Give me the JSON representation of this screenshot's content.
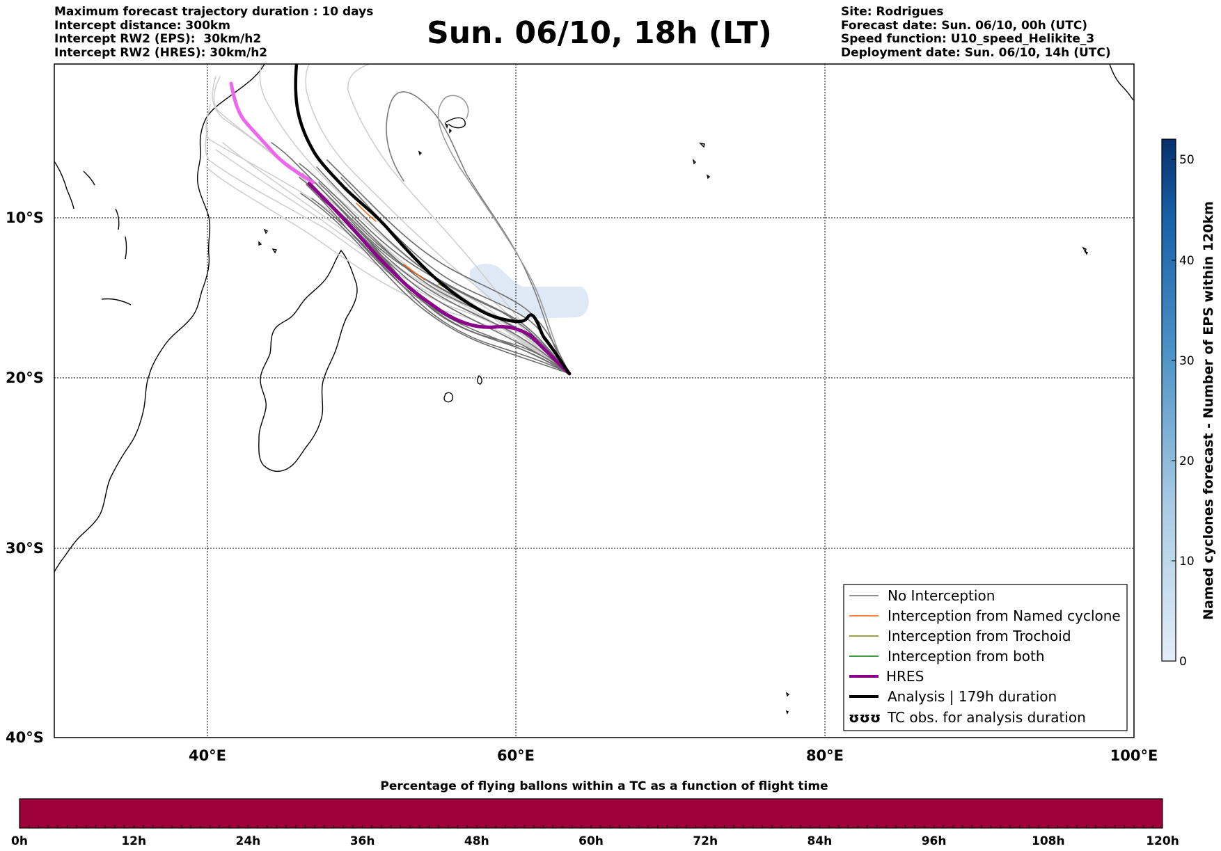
{
  "header": {
    "left_lines": [
      "Maximum forecast trajectory duration : 10 days",
      "Intercept distance: 300km",
      "Intercept RW2 (EPS):  30km/h2",
      "Intercept RW2 (HRES): 30km/h2"
    ],
    "title": "Sun. 06/10, 18h (LT)",
    "right_lines": [
      "Site: Rodrigues",
      "Forecast date: Sun. 06/10, 00h (UTC)",
      "Speed function: U10_speed_Helikite_3",
      "Deployment date: Sun. 06/10, 14h (UTC)"
    ]
  },
  "map": {
    "lat_labels": [
      "10°S",
      "20°S",
      "30°S",
      "40°S"
    ],
    "lon_labels": [
      "40°E",
      "60°E",
      "80°E",
      "100°E"
    ],
    "colors": {
      "no_interception": "#6e6e6e",
      "named_cyclone": "#ff5a00",
      "trochoid": "#808000",
      "both": "#008000",
      "hres": "#8b008b",
      "hres_light": "#ee66ee",
      "analysis": "#000000",
      "cyclone_patch": "#dfe9f5"
    }
  },
  "legend": {
    "items": [
      {
        "label": "No Interception",
        "color": "#6e6e6e"
      },
      {
        "label": "Interception from Named cyclone",
        "color": "#ff5a00"
      },
      {
        "label": "Interception from Trochoid",
        "color": "#808000"
      },
      {
        "label": "Interception from both",
        "color": "#008000"
      },
      {
        "label": "HRES",
        "color": "#8b008b"
      },
      {
        "label": "Analysis | 179h duration",
        "color": "#000000"
      },
      {
        "label": "TC obs. for analysis duration",
        "color": "#000000"
      }
    ],
    "tc_symbol": "ʊʊʊ"
  },
  "colorbar": {
    "title": "Named cyclones forecast - Number of EPS within 120km",
    "ticks": [
      "0",
      "10",
      "20",
      "30",
      "40",
      "50"
    ],
    "color_low": "#e3eef9",
    "color_high": "#08306b"
  },
  "timebar": {
    "title": "Percentage of flying ballons within a TC as a function of flight time",
    "ticks": [
      "0h",
      "12h",
      "24h",
      "36h",
      "48h",
      "60h",
      "72h",
      "84h",
      "96h",
      "108h",
      "120h"
    ],
    "color": "#9e003a"
  }
}
